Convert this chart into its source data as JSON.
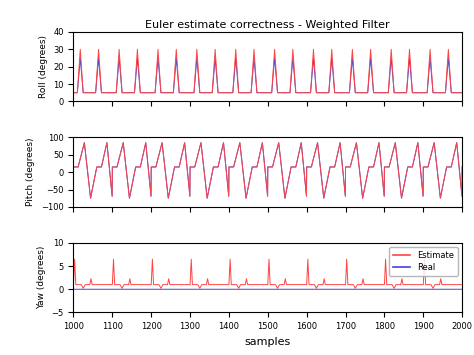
{
  "title": "Euler estimate correctness - Weighted Filter",
  "xlabel": "samples",
  "xlim": [
    1000,
    2000
  ],
  "xticks": [
    1000,
    1100,
    1200,
    1300,
    1400,
    1500,
    1600,
    1700,
    1800,
    1900,
    2000
  ],
  "roll_ylim": [
    0,
    40
  ],
  "roll_yticks": [
    0,
    10,
    20,
    30,
    40
  ],
  "roll_ylabel": "Roll (degrees)",
  "pitch_ylim": [
    -100,
    100
  ],
  "pitch_yticks": [
    -100,
    -50,
    0,
    50,
    100
  ],
  "pitch_ylabel": "Pitch (degrees)",
  "yaw_ylim": [
    -5,
    10
  ],
  "yaw_yticks": [
    -5,
    0,
    5,
    10
  ],
  "yaw_ylabel": "Yaw (degrees)",
  "color_estimate": "#FF4444",
  "color_real": "#4444DD",
  "legend_labels": [
    "Estimate",
    "Real"
  ],
  "n_samples": 2001,
  "x_start": 1000,
  "x_end": 2000,
  "roll_base": 5,
  "roll_peak_blue": 25,
  "roll_peak_red": 30,
  "pitch_min": -75,
  "pitch_max": 85,
  "pitch_plateau": 15,
  "yaw_spike_height": 6.5,
  "yaw_base": 1.0,
  "period": 100
}
